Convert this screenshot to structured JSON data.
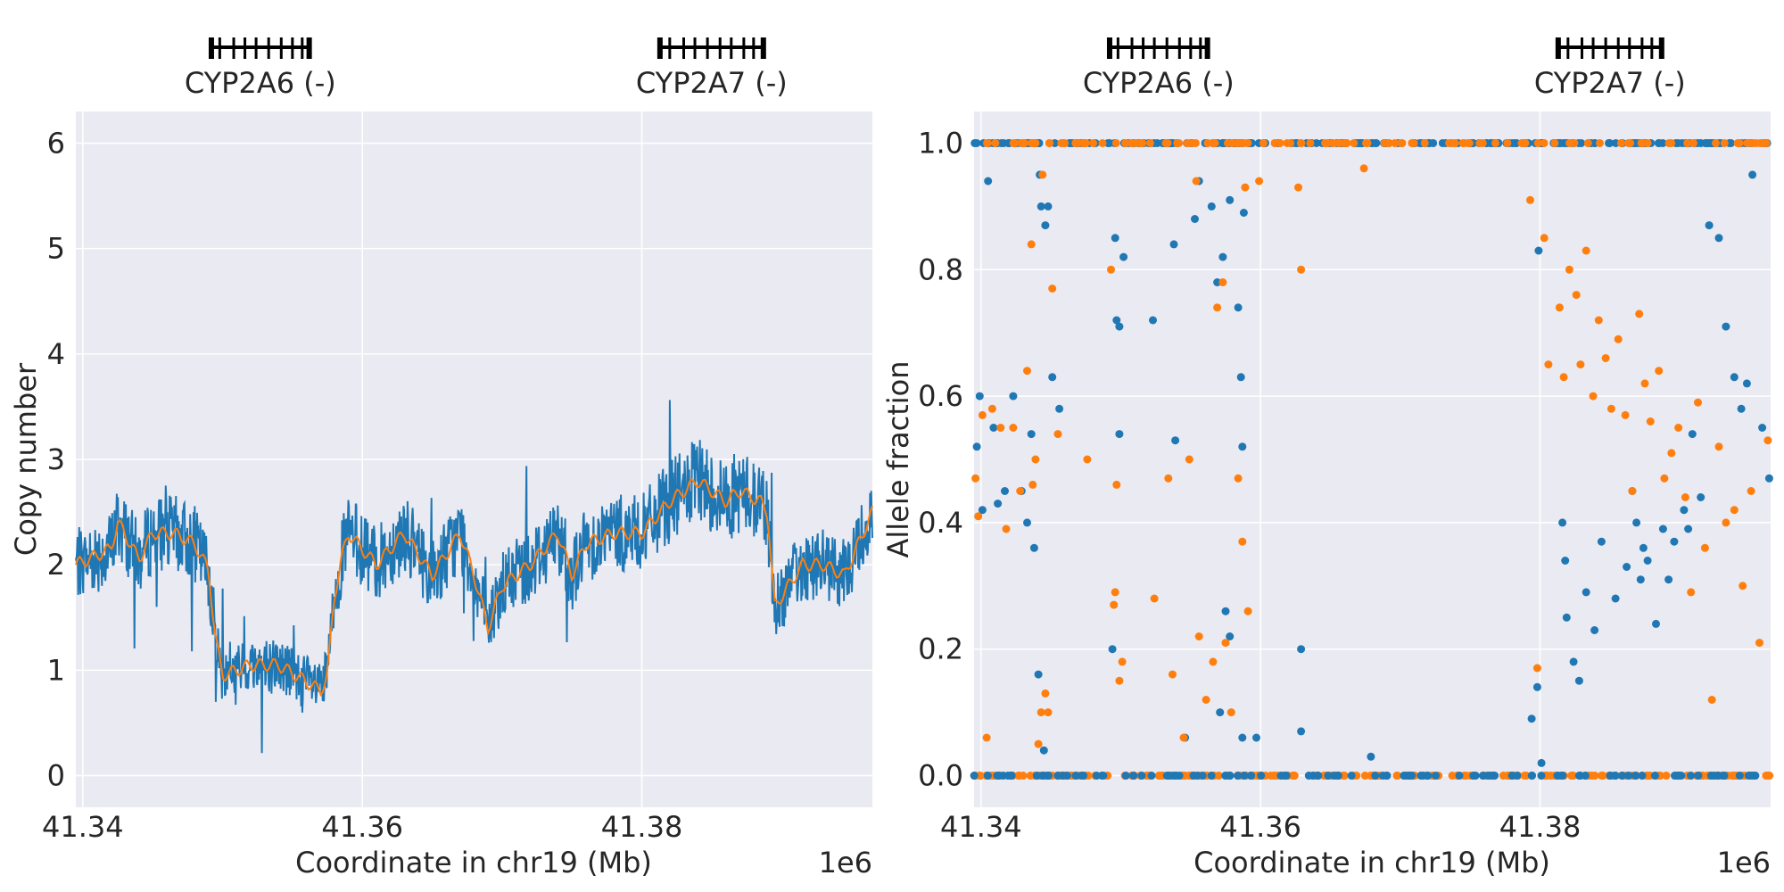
{
  "colors": {
    "background": "#eaeaf2",
    "grid": "#ffffff",
    "series_blue": "#1f77b4",
    "series_orange": "#ff7f0e",
    "gene_fill": "#000000",
    "text": "#262626"
  },
  "genes": [
    {
      "name": "CYP2A6",
      "label": "CYP2A6 (-)",
      "start": 41.3492,
      "end": 41.3562,
      "strand": "-",
      "exons": [
        41.3492,
        41.3498,
        41.3508,
        41.3516,
        41.3524,
        41.3533,
        41.3542,
        41.355,
        41.3557,
        41.3562
      ]
    },
    {
      "name": "CYP2A7",
      "label": "CYP2A7 (-)",
      "start": 41.3813,
      "end": 41.3887,
      "strand": "-",
      "exons": [
        41.3813,
        41.382,
        41.383,
        41.3838,
        41.3847,
        41.3856,
        41.3864,
        41.3873,
        41.388,
        41.3887
      ]
    }
  ],
  "chart_data": [
    {
      "type": "line",
      "title": "",
      "xlabel": "Coordinate in chr19 (Mb)",
      "ylabel": "Copy number",
      "x_offset_label": "1e6",
      "xlim": [
        41.3395,
        41.3965
      ],
      "ylim": [
        -0.3,
        6.3
      ],
      "xticks": [
        "41.34",
        "41.36",
        "41.38"
      ],
      "xtick_values": [
        41.34,
        41.36,
        41.38
      ],
      "yticks": [
        "0",
        "1",
        "2",
        "3",
        "4",
        "5",
        "6"
      ],
      "ytick_values": [
        0,
        1,
        2,
        3,
        4,
        5,
        6
      ],
      "grid": true,
      "series": [
        {
          "color": "#1f77b4",
          "style": "raw per-position copy number",
          "x": [
            41.3395,
            41.342,
            41.3425,
            41.343,
            41.344,
            41.345,
            41.3465,
            41.348,
            41.349,
            41.3495,
            41.35,
            41.352,
            41.354,
            41.3565,
            41.357,
            41.3575,
            41.358,
            41.3585,
            41.359,
            41.361,
            41.363,
            41.365,
            41.367,
            41.368,
            41.369,
            41.37,
            41.372,
            41.374,
            41.375,
            41.376,
            41.378,
            41.38,
            41.382,
            41.384,
            41.386,
            41.387,
            41.3885,
            41.389,
            41.3895,
            41.39,
            41.3915,
            41.393,
            41.3945,
            41.3965
          ],
          "y": [
            2.0,
            2.15,
            2.4,
            2.3,
            2.05,
            2.3,
            2.3,
            2.2,
            1.95,
            1.3,
            0.95,
            1.05,
            1.05,
            0.85,
            0.8,
            0.95,
            1.7,
            2.05,
            2.3,
            2.0,
            2.3,
            1.9,
            2.3,
            1.9,
            1.4,
            1.8,
            2.0,
            2.3,
            1.9,
            2.2,
            2.3,
            2.3,
            2.6,
            2.8,
            2.6,
            2.7,
            2.6,
            2.5,
            1.6,
            1.7,
            2.0,
            2.0,
            1.9,
            2.5
          ],
          "noise_amplitude": 0.35
        },
        {
          "color": "#ff7f0e",
          "style": "smoothed copy number",
          "x": [
            41.3395,
            41.342,
            41.3425,
            41.343,
            41.344,
            41.345,
            41.3465,
            41.348,
            41.349,
            41.3495,
            41.35,
            41.352,
            41.354,
            41.3565,
            41.357,
            41.3575,
            41.358,
            41.3585,
            41.359,
            41.361,
            41.363,
            41.365,
            41.367,
            41.368,
            41.369,
            41.37,
            41.372,
            41.374,
            41.375,
            41.376,
            41.378,
            41.38,
            41.382,
            41.384,
            41.386,
            41.387,
            41.3885,
            41.389,
            41.3895,
            41.39,
            41.3915,
            41.393,
            41.3945,
            41.3965
          ],
          "y": [
            2.0,
            2.15,
            2.4,
            2.3,
            2.05,
            2.3,
            2.3,
            2.2,
            1.95,
            1.3,
            0.95,
            1.05,
            1.05,
            0.85,
            0.8,
            0.95,
            1.7,
            2.05,
            2.3,
            2.0,
            2.3,
            1.9,
            2.3,
            1.9,
            1.4,
            1.8,
            2.0,
            2.3,
            1.9,
            2.2,
            2.3,
            2.3,
            2.6,
            2.8,
            2.6,
            2.7,
            2.6,
            2.5,
            1.6,
            1.7,
            2.0,
            2.0,
            1.9,
            2.5
          ]
        }
      ]
    },
    {
      "type": "scatter",
      "title": "",
      "xlabel": "Coordinate in chr19 (Mb)",
      "ylabel": "Allele fraction",
      "x_offset_label": "1e6",
      "xlim": [
        41.3395,
        41.3965
      ],
      "ylim": [
        -0.05,
        1.05
      ],
      "xticks": [
        "41.34",
        "41.36",
        "41.38"
      ],
      "xtick_values": [
        41.34,
        41.36,
        41.38
      ],
      "yticks": [
        "0.0",
        "0.2",
        "0.4",
        "0.6",
        "0.8",
        "1.0"
      ],
      "ytick_values": [
        0.0,
        0.2,
        0.4,
        0.6,
        0.8,
        1.0
      ],
      "grid": true,
      "series": [
        {
          "color": "#1f77b4",
          "x": [
            41.3397,
            41.3399,
            41.3401,
            41.3405,
            41.3409,
            41.3412,
            41.3417,
            41.3423,
            41.3429,
            41.3433,
            41.3436,
            41.3438,
            41.3441,
            41.3442,
            41.3443,
            41.3445,
            41.3446,
            41.3448,
            41.3451,
            41.3456,
            41.3494,
            41.3496,
            41.3497,
            41.3499,
            41.3499,
            41.3502,
            41.3523,
            41.3538,
            41.3539,
            41.3546,
            41.3553,
            41.3556,
            41.3565,
            41.3569,
            41.3571,
            41.3573,
            41.3575,
            41.3578,
            41.3578,
            41.3584,
            41.3586,
            41.3587,
            41.3587,
            41.3588,
            41.3597,
            41.3629,
            41.3629,
            41.3679,
            41.3794,
            41.3798,
            41.3799,
            41.3801,
            41.3816,
            41.3818,
            41.3819,
            41.3824,
            41.3828,
            41.3833,
            41.3839,
            41.3844,
            41.3854,
            41.3862,
            41.3866,
            41.3869,
            41.3872,
            41.3874,
            41.3877,
            41.3883,
            41.3888,
            41.3892,
            41.3896,
            41.3903,
            41.3906,
            41.3909,
            41.3915,
            41.3921,
            41.3928,
            41.3933,
            41.3939,
            41.3944,
            41.3948,
            41.3952,
            41.3959,
            41.3964
          ],
          "y": [
            0.52,
            0.6,
            0.42,
            0.94,
            0.55,
            0.43,
            0.45,
            0.6,
            0.45,
            0.4,
            0.54,
            0.36,
            0.16,
            0.95,
            0.9,
            0.04,
            0.87,
            0.9,
            0.63,
            0.58,
            0.2,
            0.85,
            0.72,
            0.71,
            0.54,
            0.82,
            0.72,
            0.84,
            0.53,
            0.06,
            0.88,
            0.94,
            0.9,
            0.78,
            0.1,
            0.82,
            0.26,
            0.91,
            0.22,
            0.74,
            0.63,
            0.52,
            0.06,
            0.89,
            0.06,
            0.2,
            0.07,
            0.03,
            0.09,
            0.14,
            0.83,
            0.02,
            0.4,
            0.34,
            0.25,
            0.18,
            0.15,
            0.29,
            0.23,
            0.37,
            0.28,
            0.33,
            0.45,
            0.4,
            0.31,
            0.36,
            0.34,
            0.24,
            0.39,
            0.31,
            0.37,
            0.42,
            0.39,
            0.54,
            0.44,
            0.87,
            0.85,
            0.71,
            0.63,
            0.58,
            0.62,
            0.95,
            0.55,
            0.47
          ]
        },
        {
          "color": "#ff7f0e",
          "x": [
            41.3396,
            41.3398,
            41.3401,
            41.3404,
            41.3408,
            41.3414,
            41.3418,
            41.3423,
            41.3428,
            41.3433,
            41.3436,
            41.3437,
            41.3439,
            41.3441,
            41.3443,
            41.3444,
            41.3446,
            41.3448,
            41.3451,
            41.3455,
            41.3476,
            41.3493,
            41.3495,
            41.3496,
            41.3497,
            41.3499,
            41.3501,
            41.3524,
            41.3534,
            41.3537,
            41.3545,
            41.3549,
            41.3554,
            41.3556,
            41.3561,
            41.3566,
            41.3569,
            41.3573,
            41.3575,
            41.3579,
            41.3584,
            41.3587,
            41.3589,
            41.3591,
            41.3599,
            41.3627,
            41.3629,
            41.3674,
            41.3793,
            41.3798,
            41.3803,
            41.3806,
            41.3814,
            41.3817,
            41.3821,
            41.3826,
            41.3829,
            41.3833,
            41.3838,
            41.3842,
            41.3847,
            41.3851,
            41.3856,
            41.3861,
            41.3866,
            41.3871,
            41.3875,
            41.3879,
            41.3885,
            41.3889,
            41.3894,
            41.3899,
            41.3904,
            41.3908,
            41.3913,
            41.3918,
            41.3923,
            41.3928,
            41.3933,
            41.3939,
            41.3945,
            41.3951,
            41.3957,
            41.3963
          ],
          "y": [
            0.47,
            0.41,
            0.57,
            0.06,
            0.58,
            0.55,
            0.39,
            0.55,
            0.45,
            0.64,
            0.84,
            0.46,
            0.5,
            0.05,
            0.1,
            0.95,
            0.13,
            0.1,
            0.77,
            0.54,
            0.5,
            0.8,
            0.27,
            0.29,
            0.46,
            0.15,
            0.18,
            0.28,
            0.47,
            0.16,
            0.06,
            0.5,
            0.94,
            0.22,
            0.12,
            0.18,
            0.74,
            0.78,
            0.21,
            0.1,
            0.47,
            0.37,
            0.93,
            0.26,
            0.94,
            0.93,
            0.8,
            0.96,
            0.91,
            0.17,
            0.85,
            0.65,
            0.74,
            0.63,
            0.8,
            0.76,
            0.65,
            0.83,
            0.6,
            0.72,
            0.66,
            0.58,
            0.69,
            0.57,
            0.45,
            0.73,
            0.62,
            0.56,
            0.64,
            0.47,
            0.51,
            0.55,
            0.44,
            0.29,
            0.59,
            0.36,
            0.12,
            0.52,
            0.4,
            0.42,
            0.3,
            0.45,
            0.21,
            0.53
          ],
          "shape": "filled circle"
        }
      ],
      "baseline_points": "dense clusters at 1.0 and 0.0 across entire range for both series"
    }
  ]
}
